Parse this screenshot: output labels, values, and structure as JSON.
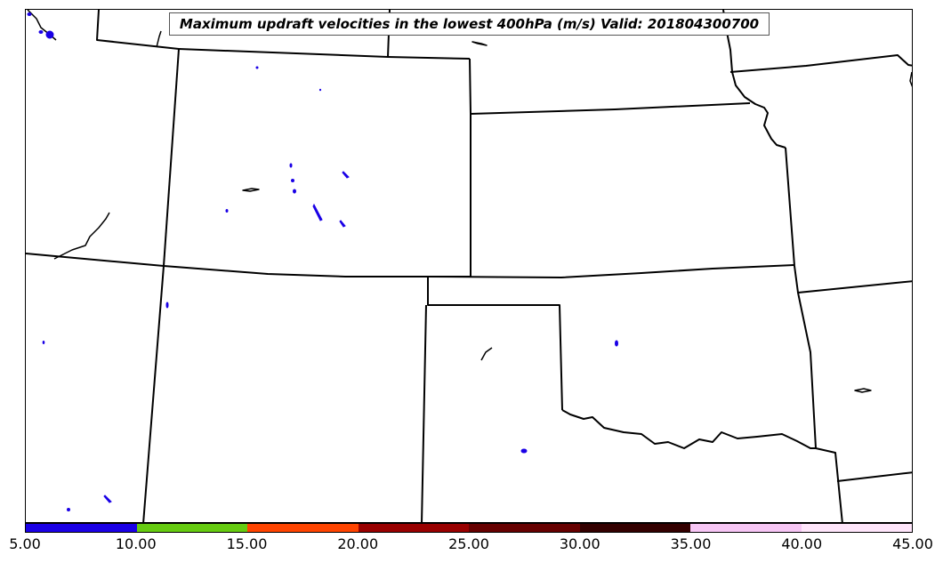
{
  "title": "Maximum updraft velocities in the lowest 400hPa (m/s) Valid: 201804300700",
  "colorbar": {
    "colors": [
      "#1a00e6",
      "#66cc11",
      "#ff4400",
      "#990000",
      "#660000",
      "#330000",
      "#f7c6f5",
      "#ffe6fb"
    ],
    "ticks": [
      "5.00",
      "10.00",
      "15.00",
      "20.00",
      "25.00",
      "30.00",
      "35.00",
      "40.00",
      "45.00"
    ]
  },
  "legend_colors": {
    "boundary": "#000000",
    "updraft_cells": "#1a00e6"
  }
}
